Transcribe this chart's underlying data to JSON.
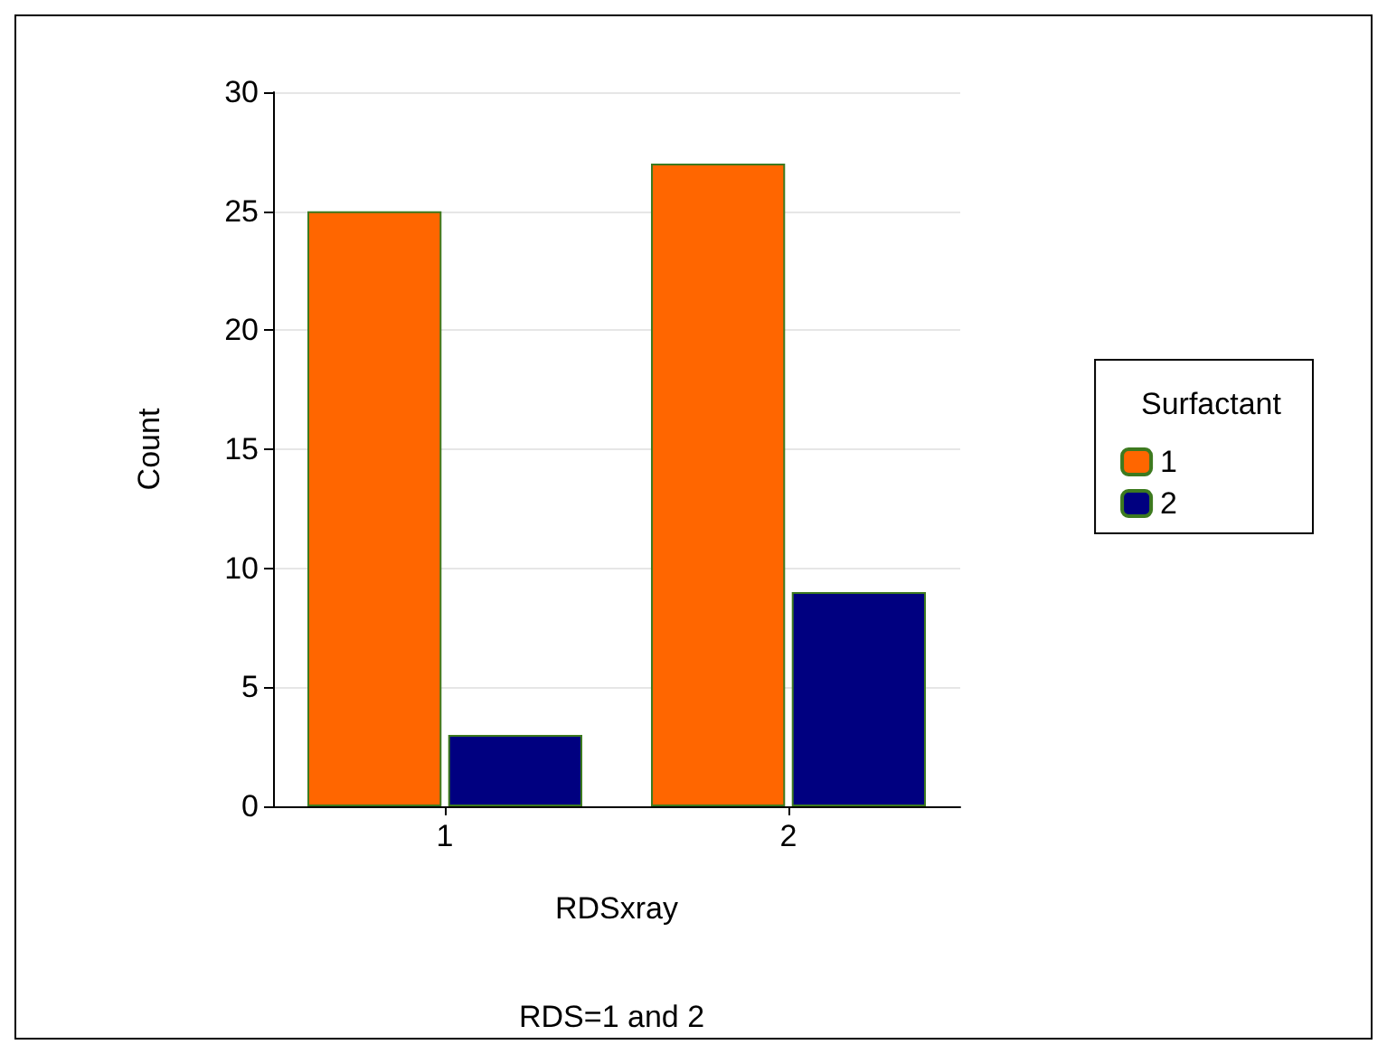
{
  "chart_data": {
    "type": "bar",
    "xlabel": "RDSxray",
    "ylabel": "Count",
    "legend_title": "Surfactant",
    "annotations": [
      "RDS=1 and 2"
    ],
    "categories": [
      "1",
      "2"
    ],
    "series": [
      {
        "name": "1",
        "color": "#ff6600",
        "values": [
          25,
          27
        ]
      },
      {
        "name": "2",
        "color": "#000080",
        "values": [
          3,
          9
        ]
      }
    ],
    "ylim": [
      0,
      30
    ],
    "yticks": [
      0,
      5,
      10,
      15,
      20,
      25,
      30
    ],
    "grid": "y",
    "legend": "right"
  }
}
